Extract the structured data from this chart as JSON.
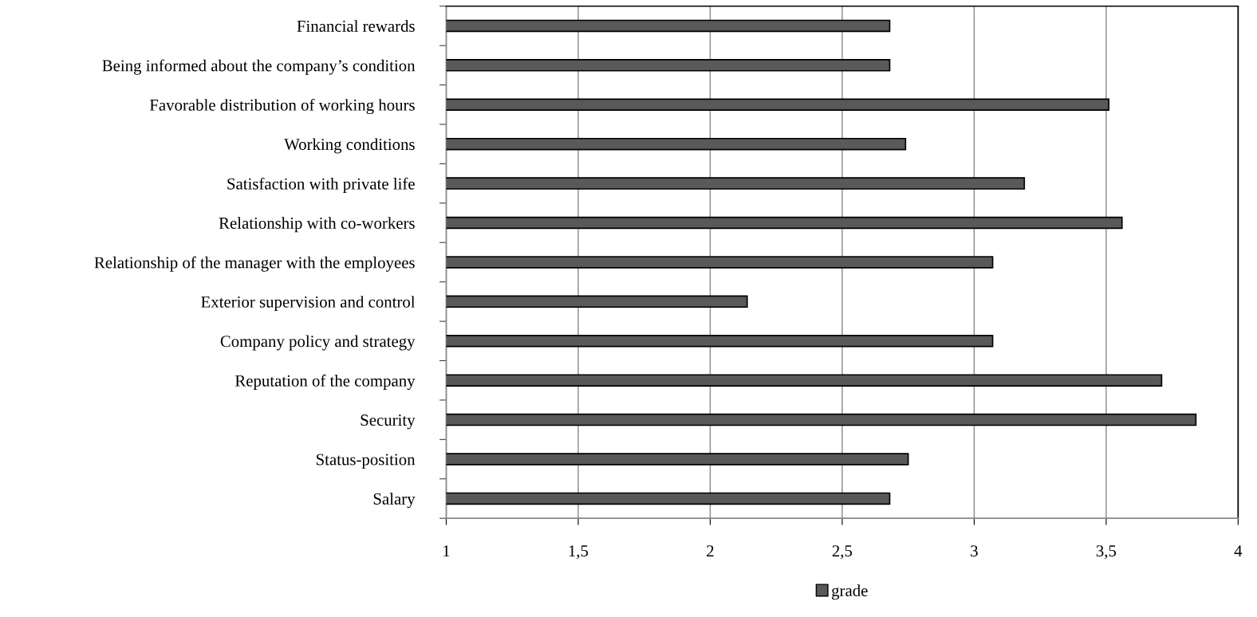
{
  "chart_data": {
    "type": "bar",
    "orientation": "horizontal",
    "categories": [
      "Financial rewards",
      "Being informed about the company’s condition",
      "Favorable distribution of working hours",
      "Working conditions",
      "Satisfaction with private life",
      "Relationship with co-workers",
      "Relationship of the manager with the employees",
      "Exterior supervision and control",
      "Company policy and strategy",
      "Reputation of the company",
      "Security",
      "Status-position",
      "Salary"
    ],
    "series": [
      {
        "name": "grade",
        "color": "#595959",
        "values": [
          2.68,
          2.68,
          3.51,
          2.74,
          3.19,
          3.56,
          3.07,
          2.14,
          3.07,
          3.71,
          3.84,
          2.75,
          2.68
        ]
      }
    ],
    "xlim": [
      1,
      4
    ],
    "xticks": [
      1,
      {
        "value": 1.5,
        "label": "1,5"
      },
      2,
      {
        "value": 2.5,
        "label": "2,5"
      },
      3,
      {
        "value": 3.5,
        "label": "3,5"
      },
      4
    ],
    "grid": "x",
    "legend": "bottom"
  }
}
